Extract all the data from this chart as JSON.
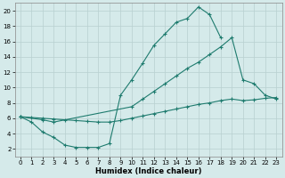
{
  "background_color": "#d5eaea",
  "grid_color": "#b8d0d0",
  "line_color": "#1e7b6e",
  "xlabel": "Humidex (Indice chaleur)",
  "xlim": [
    -0.5,
    23.5
  ],
  "ylim": [
    1.0,
    21.0
  ],
  "xticks": [
    0,
    1,
    2,
    3,
    4,
    5,
    6,
    7,
    8,
    9,
    10,
    11,
    12,
    13,
    14,
    15,
    16,
    17,
    18,
    19,
    20,
    21,
    22,
    23
  ],
  "yticks": [
    2,
    4,
    6,
    8,
    10,
    12,
    14,
    16,
    18,
    20
  ],
  "line1_x": [
    0,
    1,
    2,
    3,
    4,
    5,
    6,
    7,
    8,
    9,
    10,
    11,
    12,
    13,
    14,
    15,
    16,
    17,
    18
  ],
  "line1_y": [
    6.2,
    5.5,
    4.2,
    3.5,
    2.5,
    2.2,
    2.2,
    2.2,
    2.7,
    9.0,
    11.0,
    13.2,
    15.5,
    17.0,
    18.5,
    19.0,
    20.5,
    19.5,
    16.5
  ],
  "line2_x": [
    0,
    2,
    3,
    10,
    11,
    12,
    13,
    14,
    15,
    16,
    17,
    18,
    19,
    20,
    21,
    22,
    23
  ],
  "line2_y": [
    6.2,
    5.8,
    5.5,
    7.5,
    8.5,
    9.5,
    10.5,
    11.5,
    12.5,
    13.3,
    14.3,
    15.3,
    16.5,
    11.0,
    10.5,
    9.0,
    8.5
  ],
  "line3_x": [
    0,
    1,
    2,
    3,
    4,
    5,
    6,
    7,
    8,
    9,
    10,
    11,
    12,
    13,
    14,
    15,
    16,
    17,
    18,
    19,
    20,
    21,
    22,
    23
  ],
  "line3_y": [
    6.2,
    6.1,
    6.0,
    5.9,
    5.8,
    5.7,
    5.6,
    5.5,
    5.5,
    5.7,
    6.0,
    6.3,
    6.6,
    6.9,
    7.2,
    7.5,
    7.8,
    8.0,
    8.3,
    8.5,
    8.3,
    8.4,
    8.6,
    8.7
  ]
}
